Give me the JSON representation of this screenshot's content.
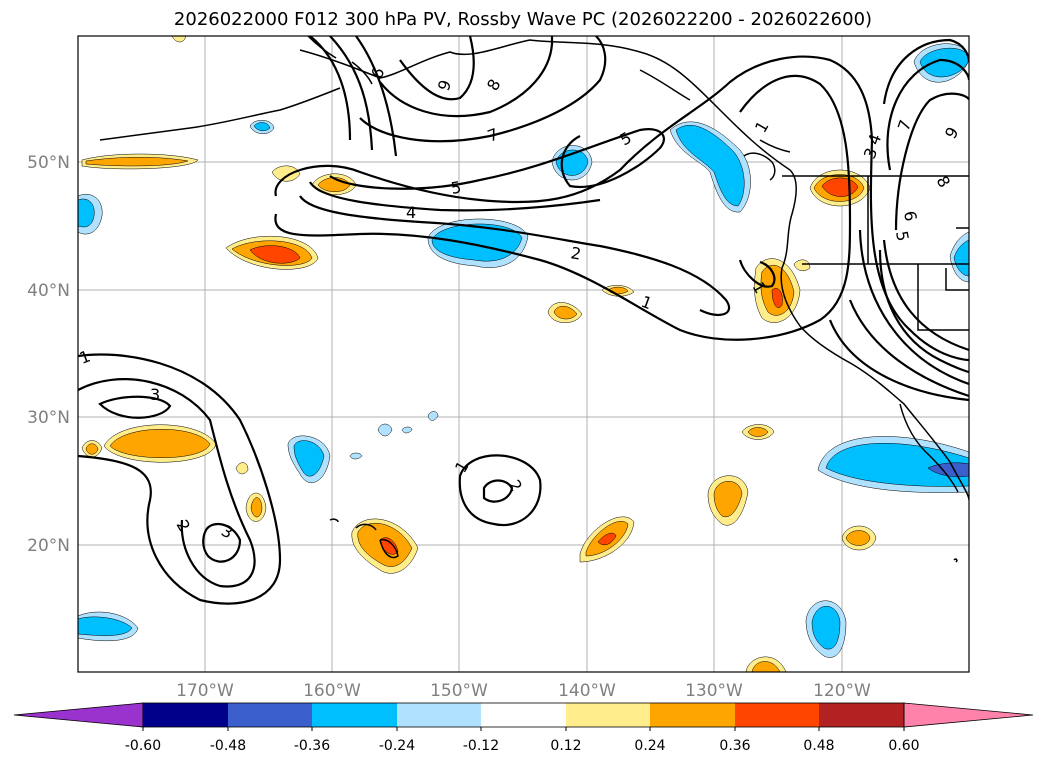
{
  "title": "2026022000 F012 300 hPa PV, Rossby Wave PC (2026022200 - 2026022600)",
  "lat_labels": [
    "50°N",
    "40°N",
    "30°N",
    "20°N"
  ],
  "lon_labels": [
    "170°W",
    "160°W",
    "150°W",
    "140°W",
    "130°W",
    "120°W"
  ],
  "colorbar": {
    "tick_labels": [
      "-0.60",
      "-0.48",
      "-0.36",
      "-0.24",
      "-0.12",
      "0.12",
      "0.24",
      "0.36",
      "0.48",
      "0.60"
    ],
    "colors": [
      "#9a32cd",
      "#00008b",
      "#3a5fcd",
      "#00bfff",
      "#b0e2ff",
      "#ffffff",
      "#ffec8b",
      "#ffa500",
      "#ff4500",
      "#b22222",
      "#ff82ab"
    ]
  },
  "contour_labels": [
    "9",
    "8",
    "7",
    "6",
    "5",
    "4",
    "2",
    "1",
    "1",
    "5",
    "1",
    "3",
    "4",
    "5",
    "6",
    "7",
    "8",
    "9",
    "1",
    "3",
    "2",
    "3",
    "1",
    "2"
  ],
  "anomaly_colors": {
    "neg1": "#b0e2ff",
    "neg2": "#00bfff",
    "neg3": "#3a5fcd",
    "pos1": "#ffec8b",
    "pos2": "#ffa500",
    "pos3": "#ff4500"
  }
}
